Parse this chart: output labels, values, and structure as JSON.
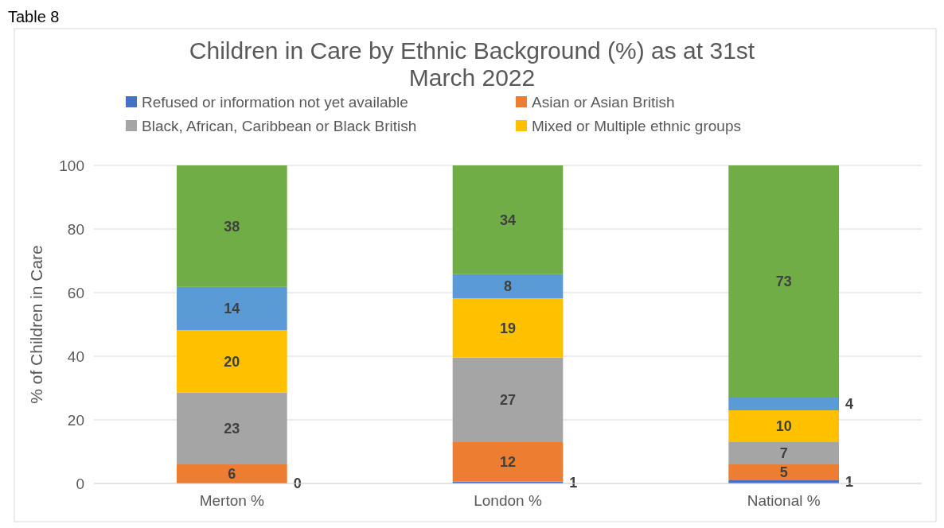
{
  "chart_data": {
    "type": "bar",
    "title": "Children in Care by Ethnic Background (%) as at 31st March 2022",
    "ylabel": "% of Children in Care",
    "annotations": [
      "Table 8"
    ],
    "categories": [
      "Merton %",
      "London %",
      "National %"
    ],
    "stacked": true,
    "legend": "top",
    "grid": "y",
    "ylim": [
      0,
      100
    ],
    "yticks": [
      0,
      20,
      40,
      60,
      80,
      100
    ],
    "series": [
      {
        "name": "Refused or information not yet available",
        "color": "#4472c4",
        "values": [
          0.2,
          0.6,
          1
        ],
        "value_labels": [
          "0",
          "1",
          "1"
        ]
      },
      {
        "name": "Asian or Asian British",
        "color": "#ed7d31",
        "values": [
          5.8,
          12.4,
          5
        ],
        "value_labels": [
          "6",
          "12",
          "5"
        ]
      },
      {
        "name": "Black, African, Caribbean or Black British",
        "color": "#a5a5a5",
        "values": [
          22.6,
          26.6,
          7
        ],
        "value_labels": [
          "23",
          "27",
          "7"
        ]
      },
      {
        "name": "Mixed or Multiple ethnic groups",
        "color": "#ffc000",
        "values": [
          19.6,
          18.6,
          10
        ],
        "value_labels": [
          "20",
          "19",
          "10"
        ]
      },
      {
        "color": "#5b9bd5",
        "values": [
          13.6,
          7.6,
          4
        ],
        "value_labels": [
          "14",
          "8",
          "4"
        ]
      },
      {
        "color": "#70ad47",
        "values": [
          38.2,
          34.2,
          73
        ],
        "value_labels": [
          "38",
          "34",
          "73"
        ]
      }
    ]
  }
}
